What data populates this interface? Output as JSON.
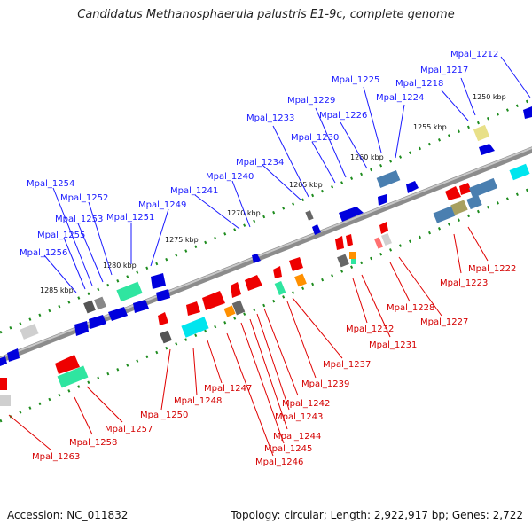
{
  "title": "Candidatus Methanosphaerula palustris E1-9c, complete genome",
  "footer": {
    "accession": "Accession: NC_011832",
    "summary": "Topology: circular; Length: 2,922,917 bp; Genes: 2,722"
  },
  "scale_labels": [
    "1250 kbp",
    "1255 kbp",
    "1260 kbp",
    "1265 kbp",
    "1270 kbp",
    "1275 kbp",
    "1280 kbp",
    "1285 kbp"
  ],
  "top_genes": [
    "Mpal_1212",
    "Mpal_1217",
    "Mpal_1218",
    "Mpal_1224",
    "Mpal_1225",
    "Mpal_1226",
    "Mpal_1229",
    "Mpal_1230",
    "Mpal_1233",
    "Mpal_1234",
    "Mpal_1240",
    "Mpal_1241",
    "Mpal_1249",
    "Mpal_1251",
    "Mpal_1252",
    "Mpal_1253",
    "Mpal_1254",
    "Mpal_1255",
    "Mpal_1256"
  ],
  "bottom_genes": [
    "Mpal_1222",
    "Mpal_1223",
    "Mpal_1227",
    "Mpal_1228",
    "Mpal_1231",
    "Mpal_1232",
    "Mpal_1237",
    "Mpal_1239",
    "Mpal_1242",
    "Mpal_1243",
    "Mpal_1244",
    "Mpal_1245",
    "Mpal_1246",
    "Mpal_1247",
    "Mpal_1248",
    "Mpal_1250",
    "Mpal_1257",
    "Mpal_1258",
    "Mpal_1263"
  ],
  "colors": {
    "forward_gene": "#0000dd",
    "reverse_gene": "#ee0000",
    "backbone": "#8c8c8c",
    "tick": "#1e8c1e",
    "rna_cyan": "#00e5ee",
    "rna_green": "#2fe5a0",
    "orange": "#ff9000",
    "steel": "#4a7fb0"
  }
}
